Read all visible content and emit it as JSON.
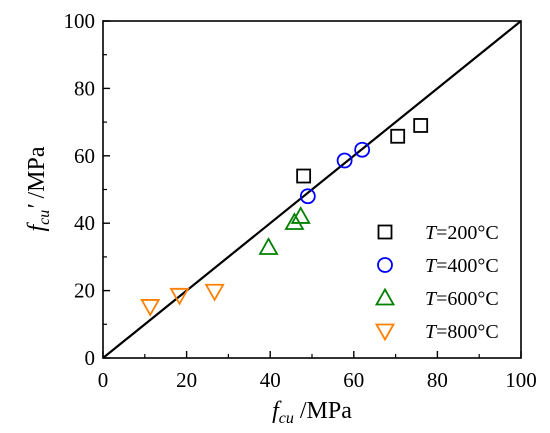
{
  "chart_data": {
    "type": "scatter",
    "title": "",
    "xlabel": {
      "symbol": "f",
      "subscript": "cu",
      "unit": " /MPa"
    },
    "ylabel": {
      "symbol": "f",
      "prime": "′",
      "subscript": "cu",
      "unit": " /MPa"
    },
    "xlim": [
      0,
      100
    ],
    "ylim": [
      0,
      100
    ],
    "xticks": [
      "0",
      "20",
      "40",
      "60",
      "80",
      "100"
    ],
    "yticks": [
      "0",
      "20",
      "40",
      "60",
      "80",
      "100"
    ],
    "grid": false,
    "legend_position": "right",
    "reference_line": {
      "x": [
        0,
        100
      ],
      "y": [
        0,
        100
      ],
      "color": "#000000"
    },
    "series": [
      {
        "name": "T=200°C",
        "label_var": "T",
        "label_rest": "=200°C",
        "marker": "square",
        "color": "#000000",
        "points": [
          [
            48,
            54
          ],
          [
            70.5,
            65.8
          ],
          [
            76,
            69
          ]
        ]
      },
      {
        "name": "T=400°C",
        "label_var": "T",
        "label_rest": "=400°C",
        "marker": "circle",
        "color": "#0000ff",
        "points": [
          [
            49,
            48
          ],
          [
            57.8,
            58.6
          ],
          [
            62,
            61.8
          ]
        ]
      },
      {
        "name": "T=600°C",
        "label_var": "T",
        "label_rest": "=600°C",
        "marker": "triangle-up",
        "color": "#008000",
        "points": [
          [
            39.6,
            32.8
          ],
          [
            45.8,
            40.2
          ],
          [
            47.3,
            42
          ]
        ]
      },
      {
        "name": "T=800°C",
        "label_var": "T",
        "label_rest": "=800°C",
        "marker": "triangle-down",
        "color": "#ff7f00",
        "points": [
          [
            11.3,
            15.3
          ],
          [
            18.3,
            18.6
          ],
          [
            26.7,
            19.8
          ]
        ]
      }
    ]
  }
}
